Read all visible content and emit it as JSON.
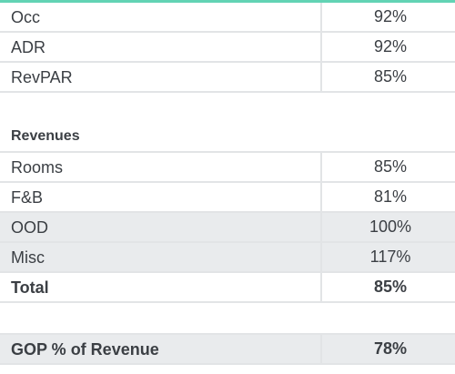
{
  "kpis": {
    "rows": [
      {
        "label": "Occ",
        "value": "92%"
      },
      {
        "label": "ADR",
        "value": "92%"
      },
      {
        "label": "RevPAR",
        "value": "85%"
      }
    ]
  },
  "revenues": {
    "title": "Revenues",
    "rows": [
      {
        "label": "Rooms",
        "value": "85%"
      },
      {
        "label": "F&B",
        "value": "81%"
      },
      {
        "label": "OOD",
        "value": "100%"
      },
      {
        "label": "Misc",
        "value": "117%"
      },
      {
        "label": "Total",
        "value": "85%"
      }
    ]
  },
  "gop": {
    "label": "GOP % of Revenue",
    "value": "78%"
  },
  "colors": {
    "accent": "#62d3b4",
    "row_shade": "#e9ebed",
    "border": "#e2e4e6",
    "text": "#3b3f44"
  }
}
